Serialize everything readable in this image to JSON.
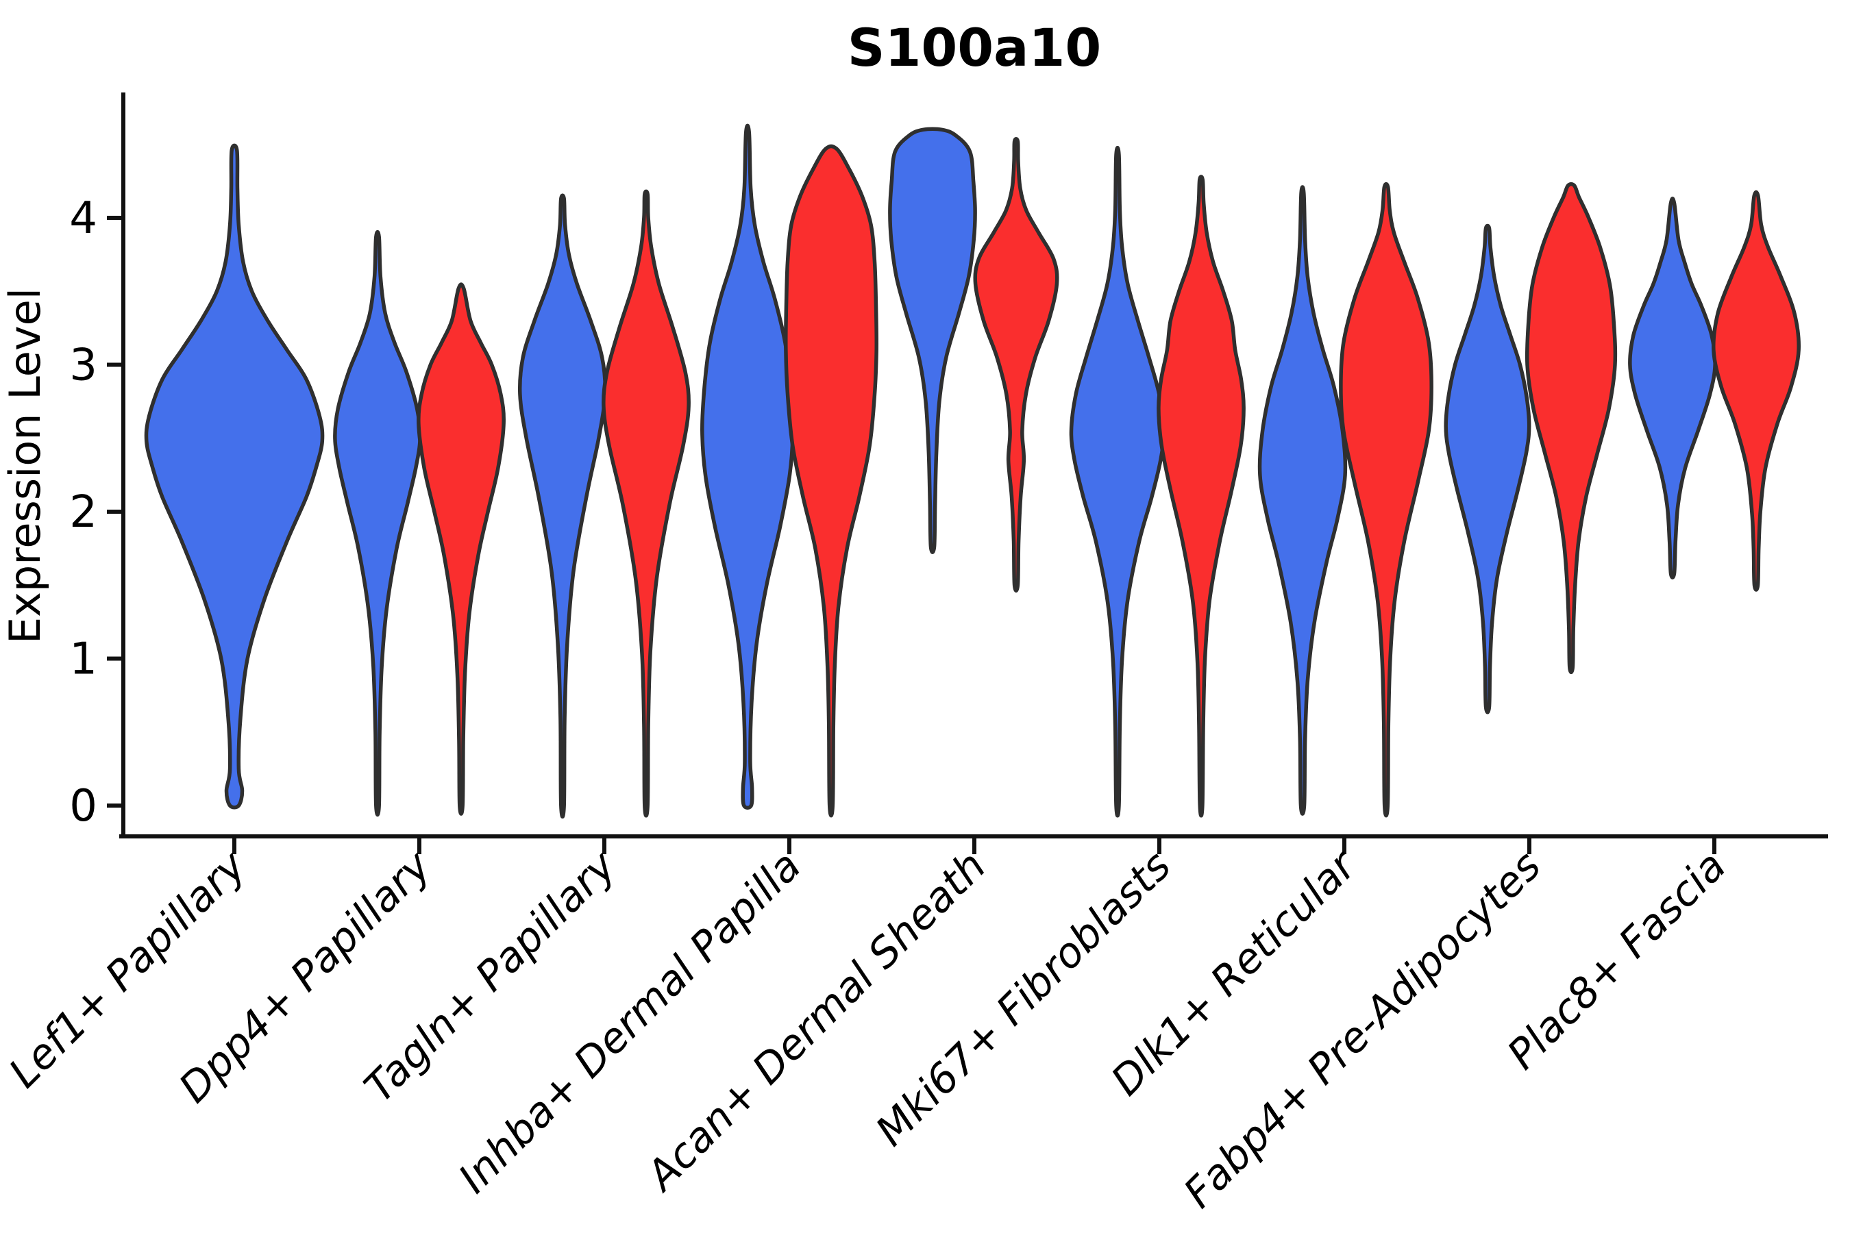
{
  "title": "S100a10",
  "y_axis": {
    "label": "Expression Level",
    "tick_labels": [
      "0",
      "1",
      "2",
      "3",
      "4"
    ]
  },
  "x_axis": {
    "categories": [
      "Lef1+ Papillary",
      "Dpp4+ Papillary",
      "Tagln+ Papillary",
      "Inhba+ Dermal Papilla",
      "Acan+ Dermal Sheath",
      "Mki67+ Fibroblasts",
      "Dlk1+ Reticular",
      "Fabp4+ Pre-Adipocytes",
      "Plac8+ Fascia"
    ]
  },
  "colors": {
    "blue": "#4470EB",
    "red": "#FA2E2E",
    "outline": "#2F2F2F",
    "axis": "#111111",
    "text": "#000000",
    "background": "#FFFFFF"
  },
  "chart_data": {
    "type": "violin",
    "title": "S100a10",
    "ylabel": "Expression Level",
    "xlabel": "",
    "ylim": [
      0,
      4.8
    ],
    "yticks": [
      0,
      1,
      2,
      3,
      4
    ],
    "grid": false,
    "legend": "none",
    "categories": [
      "Lef1+ Papillary",
      "Dpp4+ Papillary",
      "Tagln+ Papillary",
      "Inhba+ Dermal Papilla",
      "Acan+ Dermal Sheath",
      "Mki67+ Fibroblasts",
      "Dlk1+ Reticular",
      "Fabp4+ Pre-Adipocytes",
      "Plac8+ Fascia"
    ],
    "groups": [
      {
        "name": "blue",
        "color": "#4470EB"
      },
      {
        "name": "red",
        "color": "#FA2E2E"
      }
    ],
    "outline_color": "#2F2F2F",
    "violins": [
      {
        "category": 0,
        "group": "blue",
        "offset": 0,
        "width": 0.95,
        "profile": [
          [
            0.0,
            0.05
          ],
          [
            0.1,
            0.09
          ],
          [
            0.25,
            0.05
          ],
          [
            0.6,
            0.07
          ],
          [
            1.0,
            0.15
          ],
          [
            1.4,
            0.34
          ],
          [
            1.8,
            0.6
          ],
          [
            2.1,
            0.82
          ],
          [
            2.3,
            0.93
          ],
          [
            2.48,
            1.0
          ],
          [
            2.65,
            0.97
          ],
          [
            2.9,
            0.82
          ],
          [
            3.1,
            0.6
          ],
          [
            3.3,
            0.38
          ],
          [
            3.5,
            0.2
          ],
          [
            3.7,
            0.1
          ],
          [
            3.95,
            0.05
          ],
          [
            4.2,
            0.035
          ],
          [
            4.46,
            0.03
          ]
        ]
      },
      {
        "category": 1,
        "group": "blue",
        "offset": -0.226,
        "width": 0.46,
        "profile": [
          [
            0.0,
            0.035
          ],
          [
            0.5,
            0.05
          ],
          [
            0.95,
            0.1
          ],
          [
            1.35,
            0.22
          ],
          [
            1.75,
            0.45
          ],
          [
            2.05,
            0.7
          ],
          [
            2.3,
            0.9
          ],
          [
            2.5,
            1.0
          ],
          [
            2.7,
            0.93
          ],
          [
            2.95,
            0.68
          ],
          [
            3.15,
            0.4
          ],
          [
            3.35,
            0.18
          ],
          [
            3.6,
            0.07
          ],
          [
            3.87,
            0.035
          ]
        ]
      },
      {
        "category": 1,
        "group": "red",
        "offset": 0.226,
        "width": 0.46,
        "profile": [
          [
            0.0,
            0.035
          ],
          [
            0.45,
            0.05
          ],
          [
            0.9,
            0.09
          ],
          [
            1.3,
            0.19
          ],
          [
            1.7,
            0.4
          ],
          [
            2.0,
            0.63
          ],
          [
            2.3,
            0.87
          ],
          [
            2.6,
            1.0
          ],
          [
            2.8,
            0.93
          ],
          [
            3.0,
            0.72
          ],
          [
            3.15,
            0.46
          ],
          [
            3.3,
            0.22
          ],
          [
            3.52,
            0.06
          ]
        ]
      },
      {
        "category": 2,
        "group": "blue",
        "offset": -0.226,
        "width": 0.46,
        "profile": [
          [
            0.0,
            0.035
          ],
          [
            0.6,
            0.05
          ],
          [
            1.1,
            0.11
          ],
          [
            1.6,
            0.26
          ],
          [
            2.1,
            0.56
          ],
          [
            2.5,
            0.85
          ],
          [
            2.8,
            1.0
          ],
          [
            3.05,
            0.93
          ],
          [
            3.3,
            0.66
          ],
          [
            3.55,
            0.34
          ],
          [
            3.75,
            0.15
          ],
          [
            3.95,
            0.06
          ],
          [
            4.13,
            0.035
          ]
        ]
      },
      {
        "category": 2,
        "group": "red",
        "offset": 0.226,
        "width": 0.46,
        "profile": [
          [
            0.0,
            0.035
          ],
          [
            0.55,
            0.05
          ],
          [
            1.05,
            0.1
          ],
          [
            1.55,
            0.25
          ],
          [
            2.05,
            0.55
          ],
          [
            2.45,
            0.87
          ],
          [
            2.72,
            1.0
          ],
          [
            2.95,
            0.92
          ],
          [
            3.25,
            0.63
          ],
          [
            3.55,
            0.3
          ],
          [
            3.8,
            0.12
          ],
          [
            4.0,
            0.05
          ],
          [
            4.16,
            0.035
          ]
        ]
      },
      {
        "category": 3,
        "group": "blue",
        "offset": -0.226,
        "width": 0.49,
        "profile": [
          [
            0.0,
            0.08
          ],
          [
            0.12,
            0.1
          ],
          [
            0.3,
            0.06
          ],
          [
            0.7,
            0.09
          ],
          [
            1.1,
            0.2
          ],
          [
            1.5,
            0.42
          ],
          [
            1.9,
            0.72
          ],
          [
            2.25,
            0.93
          ],
          [
            2.55,
            1.0
          ],
          [
            2.85,
            0.95
          ],
          [
            3.15,
            0.83
          ],
          [
            3.45,
            0.6
          ],
          [
            3.7,
            0.35
          ],
          [
            3.95,
            0.16
          ],
          [
            4.2,
            0.07
          ],
          [
            4.58,
            0.035
          ]
        ]
      },
      {
        "category": 3,
        "group": "red",
        "offset": 0.226,
        "width": 0.49,
        "profile": [
          [
            0.0,
            0.035
          ],
          [
            0.55,
            0.05
          ],
          [
            0.95,
            0.08
          ],
          [
            1.35,
            0.16
          ],
          [
            1.75,
            0.35
          ],
          [
            2.1,
            0.62
          ],
          [
            2.45,
            0.85
          ],
          [
            2.8,
            0.96
          ],
          [
            3.1,
            1.0
          ],
          [
            3.4,
            0.99
          ],
          [
            3.7,
            0.96
          ],
          [
            3.95,
            0.88
          ],
          [
            4.15,
            0.68
          ],
          [
            4.33,
            0.4
          ],
          [
            4.47,
            0.12
          ]
        ]
      },
      {
        "category": 4,
        "group": "blue",
        "offset": -0.226,
        "width": 0.46,
        "profile": [
          [
            1.76,
            0.04
          ],
          [
            2.05,
            0.06
          ],
          [
            2.4,
            0.09
          ],
          [
            2.75,
            0.16
          ],
          [
            3.05,
            0.32
          ],
          [
            3.35,
            0.62
          ],
          [
            3.6,
            0.85
          ],
          [
            3.85,
            0.97
          ],
          [
            4.05,
            1.0
          ],
          [
            4.25,
            0.96
          ],
          [
            4.45,
            0.88
          ],
          [
            4.56,
            0.55
          ],
          [
            4.6,
            0.22
          ]
        ]
      },
      {
        "category": 4,
        "group": "red",
        "offset": 0.226,
        "width": 0.44,
        "profile": [
          [
            1.5,
            0.04
          ],
          [
            1.8,
            0.06
          ],
          [
            2.1,
            0.11
          ],
          [
            2.35,
            0.19
          ],
          [
            2.55,
            0.15
          ],
          [
            2.8,
            0.24
          ],
          [
            3.05,
            0.47
          ],
          [
            3.3,
            0.8
          ],
          [
            3.55,
            1.0
          ],
          [
            3.72,
            0.92
          ],
          [
            3.9,
            0.55
          ],
          [
            4.05,
            0.25
          ],
          [
            4.2,
            0.1
          ],
          [
            4.38,
            0.05
          ],
          [
            4.52,
            0.04
          ]
        ]
      },
      {
        "category": 5,
        "group": "blue",
        "offset": -0.226,
        "width": 0.5,
        "profile": [
          [
            0.0,
            0.03
          ],
          [
            0.55,
            0.05
          ],
          [
            1.0,
            0.1
          ],
          [
            1.4,
            0.22
          ],
          [
            1.8,
            0.47
          ],
          [
            2.1,
            0.74
          ],
          [
            2.35,
            0.93
          ],
          [
            2.55,
            1.0
          ],
          [
            2.8,
            0.9
          ],
          [
            3.05,
            0.68
          ],
          [
            3.3,
            0.44
          ],
          [
            3.55,
            0.22
          ],
          [
            3.8,
            0.1
          ],
          [
            4.05,
            0.05
          ],
          [
            4.43,
            0.03
          ]
        ]
      },
      {
        "category": 5,
        "group": "red",
        "offset": 0.226,
        "width": 0.46,
        "profile": [
          [
            0.0,
            0.03
          ],
          [
            0.55,
            0.05
          ],
          [
            1.0,
            0.09
          ],
          [
            1.4,
            0.2
          ],
          [
            1.8,
            0.44
          ],
          [
            2.15,
            0.72
          ],
          [
            2.45,
            0.93
          ],
          [
            2.7,
            1.0
          ],
          [
            2.9,
            0.94
          ],
          [
            3.1,
            0.8
          ],
          [
            3.3,
            0.72
          ],
          [
            3.5,
            0.52
          ],
          [
            3.7,
            0.28
          ],
          [
            3.9,
            0.13
          ],
          [
            4.1,
            0.06
          ],
          [
            4.26,
            0.035
          ]
        ]
      },
      {
        "category": 6,
        "group": "blue",
        "offset": -0.226,
        "width": 0.46,
        "profile": [
          [
            0.0,
            0.04
          ],
          [
            0.45,
            0.06
          ],
          [
            0.85,
            0.12
          ],
          [
            1.25,
            0.28
          ],
          [
            1.65,
            0.56
          ],
          [
            1.95,
            0.82
          ],
          [
            2.25,
            1.0
          ],
          [
            2.55,
            0.94
          ],
          [
            2.85,
            0.74
          ],
          [
            3.1,
            0.48
          ],
          [
            3.35,
            0.26
          ],
          [
            3.6,
            0.12
          ],
          [
            3.85,
            0.06
          ],
          [
            4.17,
            0.03
          ]
        ]
      },
      {
        "category": 6,
        "group": "red",
        "offset": 0.226,
        "width": 0.49,
        "profile": [
          [
            0.0,
            0.035
          ],
          [
            0.55,
            0.05
          ],
          [
            1.0,
            0.09
          ],
          [
            1.4,
            0.19
          ],
          [
            1.8,
            0.4
          ],
          [
            2.2,
            0.7
          ],
          [
            2.55,
            0.94
          ],
          [
            2.85,
            1.0
          ],
          [
            3.15,
            0.94
          ],
          [
            3.45,
            0.7
          ],
          [
            3.7,
            0.4
          ],
          [
            3.9,
            0.17
          ],
          [
            4.05,
            0.08
          ],
          [
            4.21,
            0.04
          ]
        ]
      },
      {
        "category": 7,
        "group": "blue",
        "offset": -0.226,
        "width": 0.45,
        "profile": [
          [
            0.67,
            0.04
          ],
          [
            0.95,
            0.06
          ],
          [
            1.25,
            0.11
          ],
          [
            1.55,
            0.23
          ],
          [
            1.85,
            0.46
          ],
          [
            2.15,
            0.73
          ],
          [
            2.4,
            0.93
          ],
          [
            2.58,
            1.0
          ],
          [
            2.78,
            0.94
          ],
          [
            3.0,
            0.78
          ],
          [
            3.2,
            0.55
          ],
          [
            3.4,
            0.32
          ],
          [
            3.6,
            0.16
          ],
          [
            3.8,
            0.07
          ],
          [
            3.93,
            0.04
          ]
        ]
      },
      {
        "category": 7,
        "group": "red",
        "offset": 0.226,
        "width": 0.474,
        "profile": [
          [
            0.94,
            0.035
          ],
          [
            1.2,
            0.05
          ],
          [
            1.5,
            0.09
          ],
          [
            1.8,
            0.17
          ],
          [
            2.1,
            0.34
          ],
          [
            2.4,
            0.6
          ],
          [
            2.7,
            0.86
          ],
          [
            3.0,
            1.0
          ],
          [
            3.3,
            0.97
          ],
          [
            3.55,
            0.88
          ],
          [
            3.8,
            0.66
          ],
          [
            4.0,
            0.4
          ],
          [
            4.14,
            0.18
          ],
          [
            4.22,
            0.07
          ]
        ]
      },
      {
        "category": 8,
        "group": "blue",
        "offset": -0.226,
        "width": 0.46,
        "profile": [
          [
            1.58,
            0.04
          ],
          [
            1.8,
            0.07
          ],
          [
            2.05,
            0.13
          ],
          [
            2.3,
            0.3
          ],
          [
            2.55,
            0.6
          ],
          [
            2.8,
            0.88
          ],
          [
            3.0,
            1.0
          ],
          [
            3.2,
            0.92
          ],
          [
            3.4,
            0.68
          ],
          [
            3.55,
            0.45
          ],
          [
            3.7,
            0.28
          ],
          [
            3.85,
            0.14
          ],
          [
            4.1,
            0.04
          ]
        ]
      },
      {
        "category": 8,
        "group": "red",
        "offset": 0.226,
        "width": 0.46,
        "profile": [
          [
            1.5,
            0.04
          ],
          [
            1.75,
            0.06
          ],
          [
            2.0,
            0.1
          ],
          [
            2.3,
            0.22
          ],
          [
            2.6,
            0.5
          ],
          [
            2.85,
            0.82
          ],
          [
            3.1,
            1.0
          ],
          [
            3.35,
            0.9
          ],
          [
            3.6,
            0.58
          ],
          [
            3.8,
            0.28
          ],
          [
            3.95,
            0.12
          ],
          [
            4.15,
            0.045
          ]
        ]
      }
    ]
  }
}
